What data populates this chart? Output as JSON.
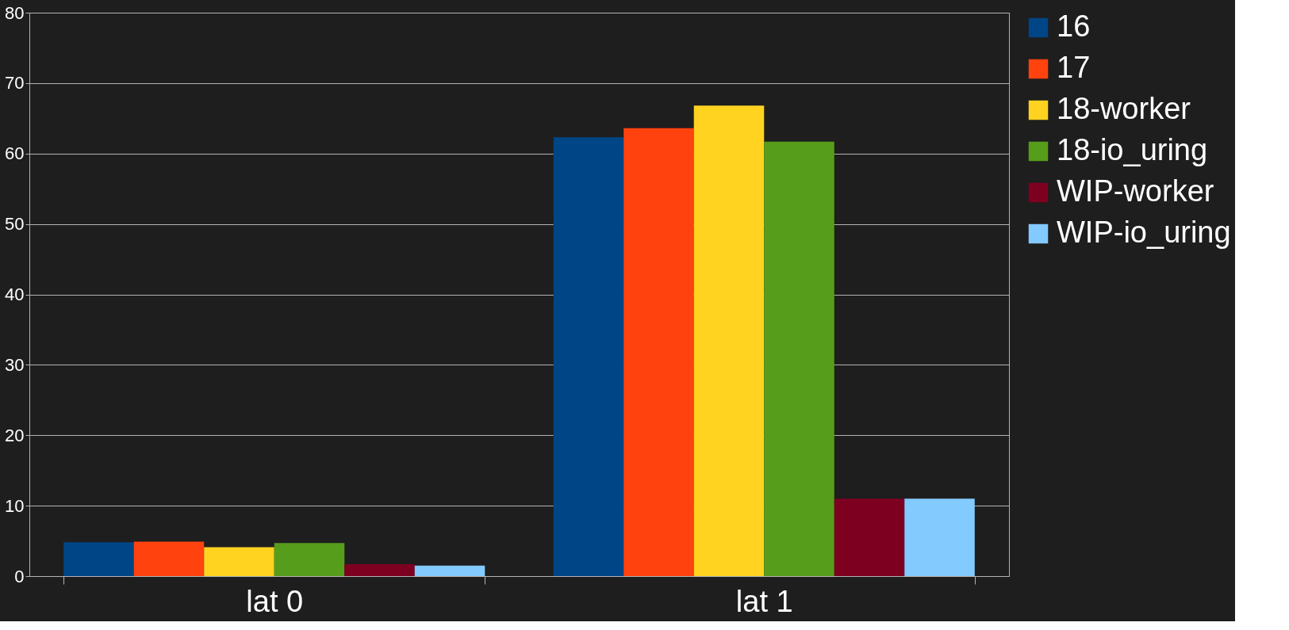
{
  "chart_data": {
    "type": "bar",
    "categories": [
      "lat 0",
      "lat 1"
    ],
    "series": [
      {
        "name": "16",
        "color": "#004586",
        "values": [
          4.8,
          62.3
        ]
      },
      {
        "name": "17",
        "color": "#ff420e",
        "values": [
          4.9,
          63.6
        ]
      },
      {
        "name": "18-worker",
        "color": "#ffd320",
        "values": [
          4.1,
          66.8
        ]
      },
      {
        "name": "18-io_uring",
        "color": "#579d1c",
        "values": [
          4.7,
          61.7
        ]
      },
      {
        "name": "WIP-worker",
        "color": "#7e0021",
        "values": [
          1.7,
          11.0
        ]
      },
      {
        "name": "WIP-io_uring",
        "color": "#83caff",
        "values": [
          1.5,
          11.0
        ]
      }
    ],
    "ylim": [
      0,
      80
    ],
    "yticks": [
      0,
      10,
      20,
      30,
      40,
      50,
      60,
      70,
      80
    ],
    "grid": "y",
    "legend": "right"
  }
}
